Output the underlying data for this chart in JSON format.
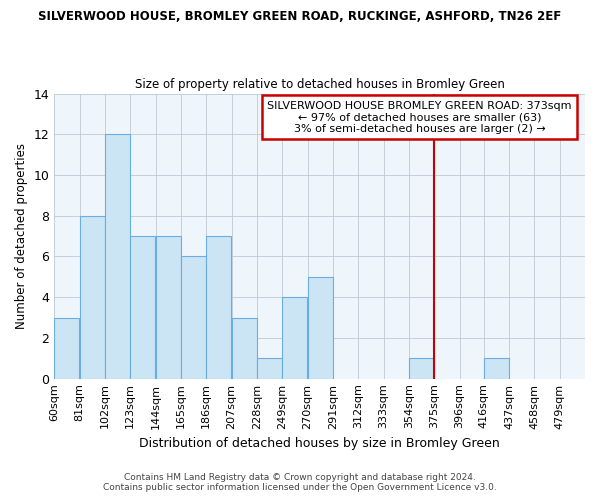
{
  "title": "SILVERWOOD HOUSE, BROMLEY GREEN ROAD, RUCKINGE, ASHFORD, TN26 2EF",
  "subtitle": "Size of property relative to detached houses in Bromley Green",
  "xlabel": "Distribution of detached houses by size in Bromley Green",
  "ylabel": "Number of detached properties",
  "bin_labels": [
    "60sqm",
    "81sqm",
    "102sqm",
    "123sqm",
    "144sqm",
    "165sqm",
    "186sqm",
    "207sqm",
    "228sqm",
    "249sqm",
    "270sqm",
    "291sqm",
    "312sqm",
    "333sqm",
    "354sqm",
    "375sqm",
    "396sqm",
    "416sqm",
    "437sqm",
    "458sqm",
    "479sqm"
  ],
  "bar_values": [
    3,
    8,
    12,
    7,
    7,
    6,
    7,
    3,
    1,
    4,
    5,
    0,
    0,
    0,
    1,
    0,
    0,
    1,
    0,
    0,
    0
  ],
  "bar_color": "#cce5f5",
  "bar_edge_color": "#6aade0",
  "vline_x_index": 15,
  "vline_color": "#cc0000",
  "ylim": [
    0,
    14
  ],
  "yticks": [
    0,
    2,
    4,
    6,
    8,
    10,
    12,
    14
  ],
  "annotation_title": "SILVERWOOD HOUSE BROMLEY GREEN ROAD: 373sqm",
  "annotation_line1": "← 97% of detached houses are smaller (63)",
  "annotation_line2": "3% of semi-detached houses are larger (2) →",
  "footer1": "Contains HM Land Registry data © Crown copyright and database right 2024.",
  "footer2": "Contains public sector information licensed under the Open Government Licence v3.0.",
  "bin_width": 21
}
